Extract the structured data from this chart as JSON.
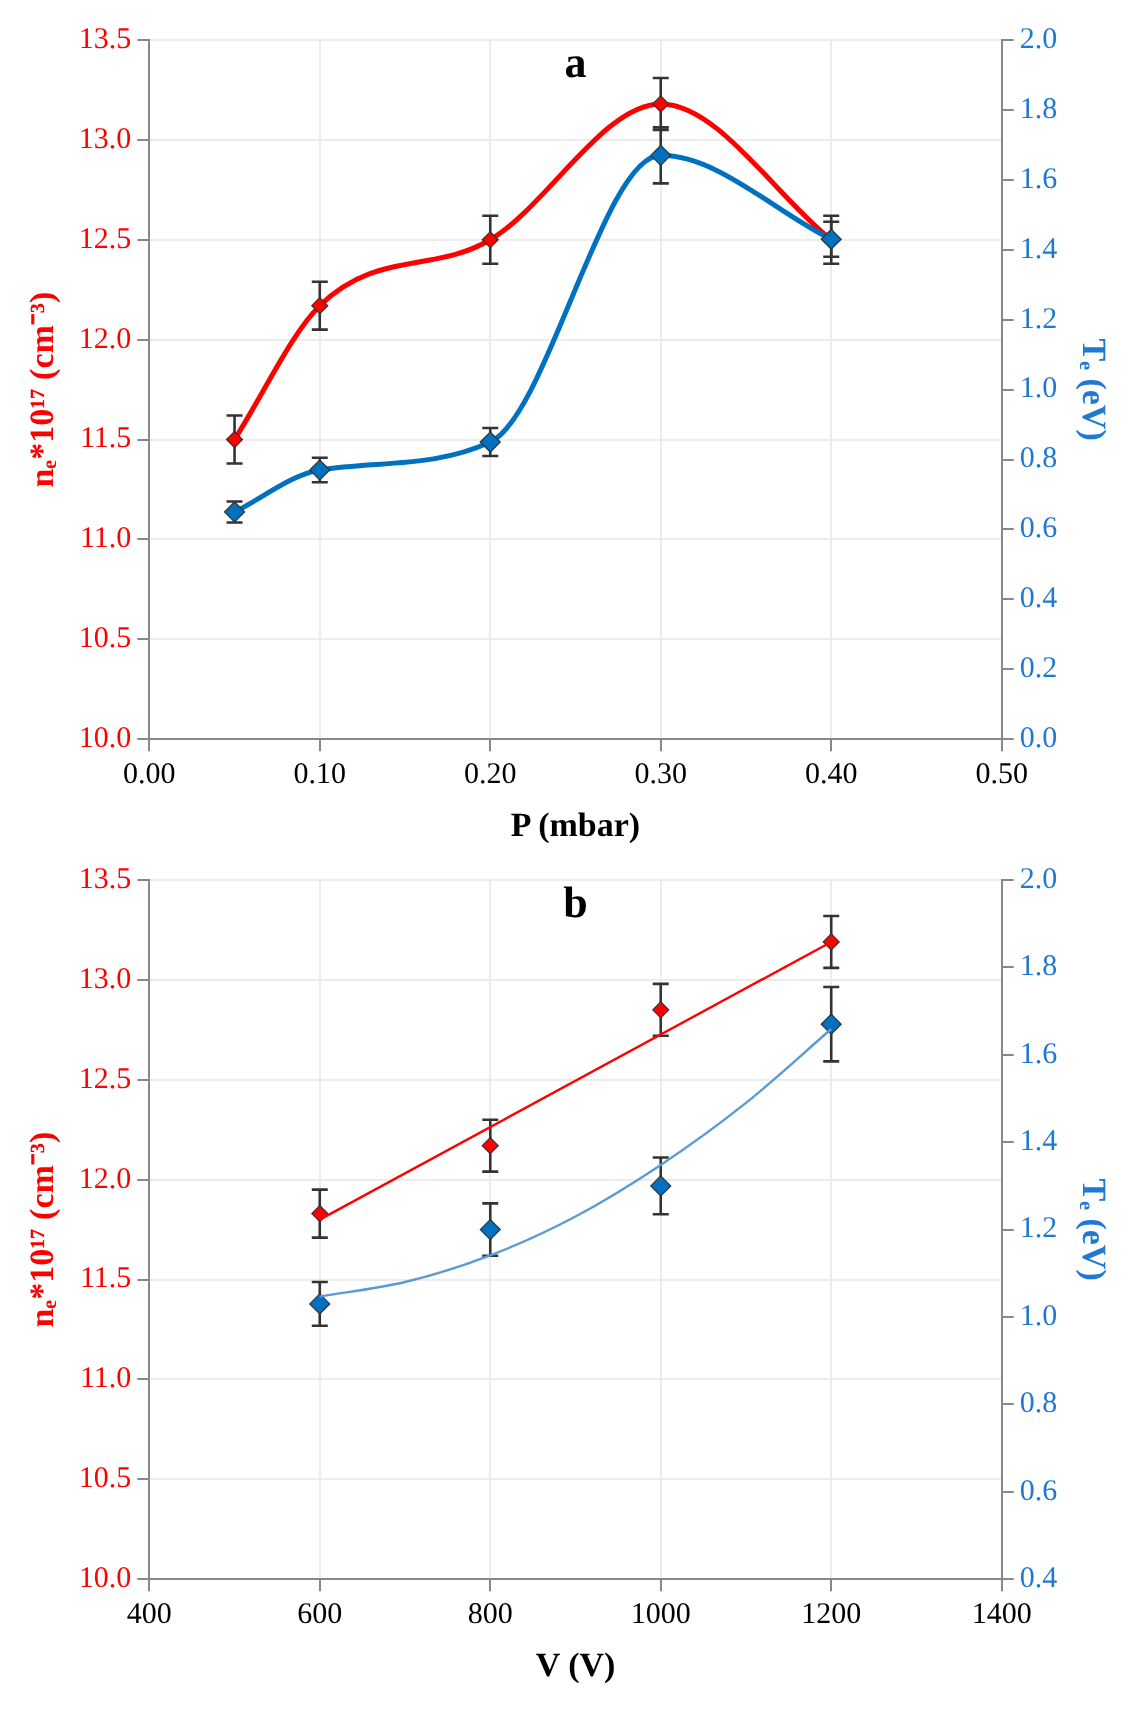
{
  "chart_data": [
    {
      "type": "line",
      "title": "a",
      "xlabel": "P (mbar)",
      "ylabel": "nₑ*10¹⁷ (cm⁻³)",
      "y2label": "Tₑ (eV)",
      "grid": true,
      "marker": "diamond",
      "xlim": [
        0,
        0.5
      ],
      "xticks": [
        {
          "value": 0,
          "label": "0.00"
        },
        {
          "value": 0.1,
          "label": "0.10"
        },
        {
          "value": 0.2,
          "label": "0.20"
        },
        {
          "value": 0.3,
          "label": "0.30"
        },
        {
          "value": 0.4,
          "label": "0.40"
        },
        {
          "value": 0.5,
          "label": "0.50"
        }
      ],
      "ylim": [
        10,
        13.5
      ],
      "yticks": [
        {
          "value": 10,
          "label": "10.0"
        },
        10.5,
        {
          "value": 11,
          "label": "11.0"
        },
        11.5,
        {
          "value": 12,
          "label": "12.0"
        },
        12.5,
        {
          "value": 13,
          "label": "13.0"
        },
        13.5
      ],
      "y2lim": [
        0,
        2
      ],
      "y2ticks": [
        {
          "value": 0,
          "label": "0.0"
        },
        0.2,
        0.4,
        0.6,
        0.8,
        {
          "value": 1,
          "label": "1.0"
        },
        1.2,
        1.4,
        1.6,
        1.8,
        {
          "value": 2,
          "label": "2.0"
        }
      ],
      "series": [
        {
          "color": "#ff0000",
          "x": [
            0.05,
            0.1,
            0.2,
            0.3,
            0.4
          ],
          "values": [
            11.5,
            12.17,
            12.5,
            13.18,
            12.5
          ],
          "errors": [
            0.12,
            0.12,
            0.12,
            0.13,
            0.12
          ]
        },
        {
          "color": "#0070c0",
          "axis": "y2",
          "x": [
            0.05,
            0.1,
            0.2,
            0.3,
            0.4
          ],
          "values": [
            0.65,
            0.77,
            0.85,
            1.67,
            1.43
          ],
          "errors": [
            0.03,
            0.035,
            0.04,
            0.08,
            0.05
          ]
        }
      ]
    },
    {
      "type": "scatter",
      "title": "b",
      "xlabel": "V (V)",
      "ylabel": "nₑ*10¹⁷ (cm⁻³)",
      "y2label": "Tₑ (eV)",
      "grid": true,
      "marker": "diamond",
      "xlim": [
        400,
        1400
      ],
      "xticks": [
        400,
        600,
        800,
        1000,
        1200,
        1400
      ],
      "ylim": [
        10,
        13.5
      ],
      "yticks": [
        {
          "value": 10,
          "label": "10.0"
        },
        10.5,
        {
          "value": 11,
          "label": "11.0"
        },
        11.5,
        {
          "value": 12,
          "label": "12.0"
        },
        12.5,
        {
          "value": 13,
          "label": "13.0"
        },
        13.5
      ],
      "y2lim": [
        0.4,
        2
      ],
      "y2ticks": [
        0.4,
        0.6,
        0.8,
        {
          "value": 1,
          "label": "1.0"
        },
        1.2,
        1.4,
        1.6,
        1.8,
        {
          "value": 2,
          "label": "2.0"
        }
      ],
      "series": [
        {
          "color": "#ff0000",
          "x": [
            600,
            800,
            1000,
            1200
          ],
          "values": [
            11.83,
            12.17,
            12.85,
            13.19
          ],
          "errors": [
            0.12,
            0.13,
            0.13,
            0.13
          ]
        },
        {
          "color": "#0070c0",
          "axis": "y2",
          "x": [
            600,
            800,
            1000,
            1200
          ],
          "values": [
            1.03,
            1.2,
            1.3,
            1.67
          ],
          "errors": [
            0.05,
            0.06,
            0.065,
            0.085
          ]
        },
        {
          "type": "line",
          "marker": "none",
          "color": "#ff0000",
          "x": [
            600,
            1200
          ],
          "values": [
            11.8,
            13.19
          ]
        },
        {
          "type": "line",
          "marker": "none",
          "color": "#5b9bd5",
          "axis": "y2",
          "x": [
            600,
            700,
            800,
            900,
            1000,
            1100,
            1200
          ],
          "values": [
            1.047,
            1.08,
            1.141,
            1.23,
            1.348,
            1.49,
            1.659
          ]
        }
      ]
    }
  ]
}
